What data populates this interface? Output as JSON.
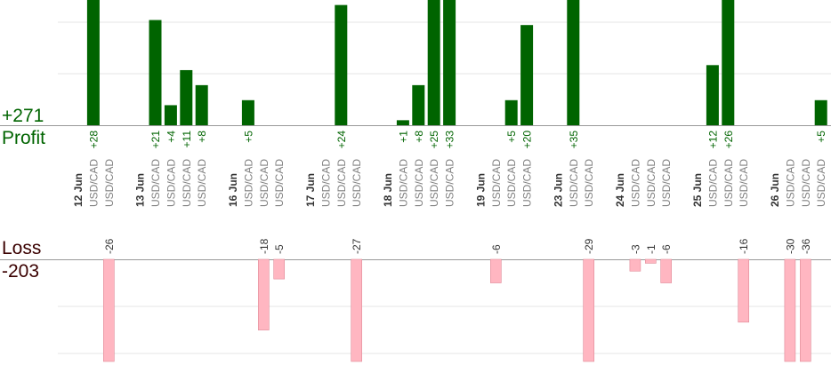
{
  "summary": {
    "profit_total": "+271",
    "profit_label": "Profit",
    "loss_label": "Loss",
    "loss_total": "-203"
  },
  "colors": {
    "profit_bar": "#006400",
    "profit_text": "#006400",
    "loss_bar": "#ffb6c1",
    "loss_text": "#333333",
    "pair_text": "#808080",
    "date_text": "#333333",
    "grid": "#e6e6e6",
    "axis": "#999999"
  },
  "chart_data": {
    "type": "bar",
    "title": "",
    "categories_note": "",
    "slots": [
      {
        "type": "date",
        "label": "12 Jun"
      },
      {
        "type": "trade",
        "label": "USD/CAD",
        "profit": 28
      },
      {
        "type": "trade",
        "label": "USD/CAD",
        "loss": -26
      },
      {
        "type": "gap"
      },
      {
        "type": "date",
        "label": "13 Jun"
      },
      {
        "type": "trade",
        "label": "USD/CAD",
        "profit": 21
      },
      {
        "type": "trade",
        "label": "USD/CAD",
        "profit": 4
      },
      {
        "type": "trade",
        "label": "USD/CAD",
        "profit": 11
      },
      {
        "type": "trade",
        "label": "USD/CAD",
        "profit": 8
      },
      {
        "type": "gap"
      },
      {
        "type": "date",
        "label": "16 Jun"
      },
      {
        "type": "trade",
        "label": "USD/CAD",
        "profit": 5
      },
      {
        "type": "trade",
        "label": "USD/CAD",
        "loss": -18
      },
      {
        "type": "trade",
        "label": "USD/CAD",
        "loss": -5
      },
      {
        "type": "gap"
      },
      {
        "type": "date",
        "label": "17 Jun"
      },
      {
        "type": "trade",
        "label": "USD/CAD"
      },
      {
        "type": "trade",
        "label": "USD/CAD",
        "profit": 24
      },
      {
        "type": "trade",
        "label": "USD/CAD",
        "loss": -27
      },
      {
        "type": "gap"
      },
      {
        "type": "date",
        "label": "18 Jun"
      },
      {
        "type": "trade",
        "label": "USD/CAD",
        "profit": 1
      },
      {
        "type": "trade",
        "label": "USD/CAD",
        "profit": 8
      },
      {
        "type": "trade",
        "label": "USD/CAD",
        "profit": 25
      },
      {
        "type": "trade",
        "label": "USD/CAD",
        "profit": 33
      },
      {
        "type": "gap"
      },
      {
        "type": "date",
        "label": "19 Jun"
      },
      {
        "type": "trade",
        "label": "USD/CAD",
        "loss": -6
      },
      {
        "type": "trade",
        "label": "USD/CAD",
        "profit": 5
      },
      {
        "type": "trade",
        "label": "USD/CAD",
        "profit": 20
      },
      {
        "type": "gap"
      },
      {
        "type": "date",
        "label": "23 Jun"
      },
      {
        "type": "trade",
        "label": "USD/CAD",
        "profit": 35
      },
      {
        "type": "trade",
        "label": "USD/CAD",
        "loss": -29
      },
      {
        "type": "gap"
      },
      {
        "type": "date",
        "label": "24 Jun"
      },
      {
        "type": "trade",
        "label": "USD/CAD",
        "loss": -3
      },
      {
        "type": "trade",
        "label": "USD/CAD",
        "loss": -1
      },
      {
        "type": "trade",
        "label": "USD/CAD",
        "loss": -6
      },
      {
        "type": "gap"
      },
      {
        "type": "date",
        "label": "25 Jun"
      },
      {
        "type": "trade",
        "label": "USD/CAD",
        "profit": 12
      },
      {
        "type": "trade",
        "label": "USD/CAD",
        "profit": 26
      },
      {
        "type": "trade",
        "label": "USD/CAD",
        "loss": -16
      },
      {
        "type": "gap"
      },
      {
        "type": "date",
        "label": "26 Jun"
      },
      {
        "type": "trade",
        "label": "USD/CAD",
        "loss": -30
      },
      {
        "type": "trade",
        "label": "USD/CAD",
        "loss": -36
      },
      {
        "type": "trade",
        "label": "USD/CAD",
        "profit": 5
      }
    ],
    "profit_axis_range": [
      0,
      25
    ],
    "loss_axis_range": [
      0,
      -26
    ],
    "bars_clipped_at_range": true,
    "grid": true,
    "legend": "none"
  }
}
